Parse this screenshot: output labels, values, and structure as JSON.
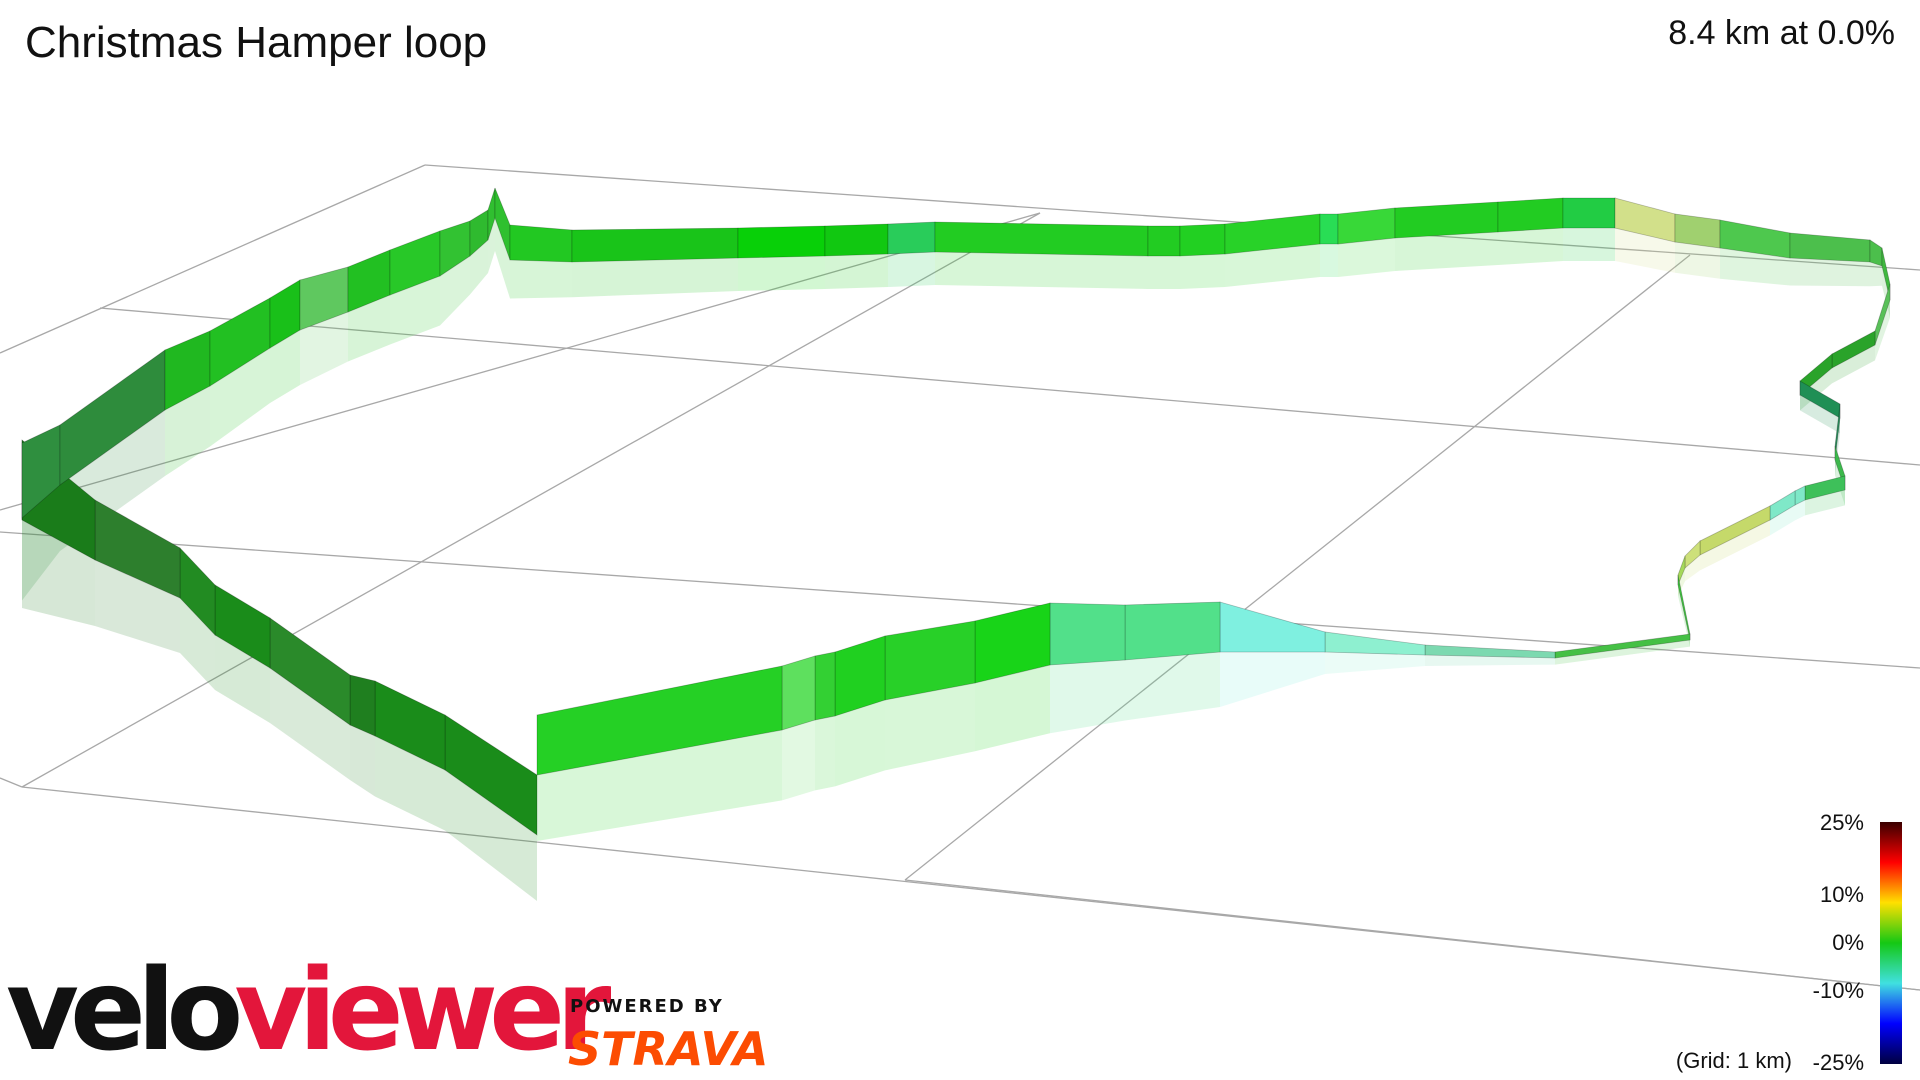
{
  "header": {
    "title": "Christmas Hamper loop",
    "summary": "8.4 km at 0.0%"
  },
  "legend": {
    "grid_note": "(Grid: 1 km)",
    "ticks": [
      "25%",
      "10%",
      "0%",
      "-10%",
      "-25%"
    ],
    "colors": {
      "top": "#3a0000",
      "red": "#ff0000",
      "yellow": "#ffe000",
      "green": "#14c814",
      "cyan": "#40e0e0",
      "blue": "#0000ff",
      "bottom": "#000040"
    }
  },
  "branding": {
    "logo_part_1": "velo",
    "logo_part_2": "viewer",
    "powered_by": "POWERED BY",
    "partner": "STRAVA",
    "logo_color": "#e3163b",
    "partner_color": "#fc4c02"
  },
  "route": {
    "distance_km": 8.4,
    "average_gradient_percent": 0.0,
    "render_style": "3d-elevation-ribbon"
  }
}
